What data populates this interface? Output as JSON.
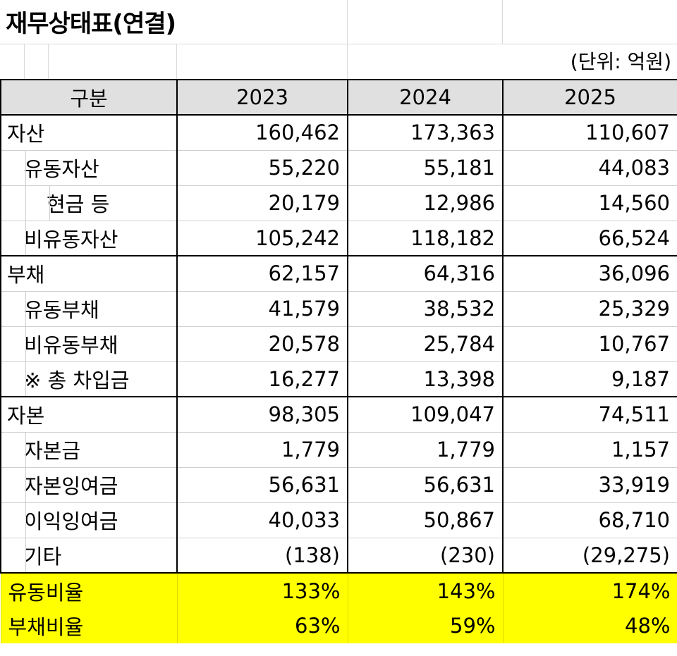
{
  "title": "재무상태표(연결)",
  "unit": "(단위: 억원)",
  "header": {
    "label": "구분",
    "years": [
      "2023",
      "2024",
      "2025"
    ]
  },
  "rows": [
    {
      "label": "자산",
      "level": 0,
      "values": [
        "160,462",
        "173,363",
        "110,607"
      ]
    },
    {
      "label": "유동자산",
      "level": 1,
      "values": [
        "55,220",
        "55,181",
        "44,083"
      ]
    },
    {
      "label": "현금 등",
      "level": 2,
      "values": [
        "20,179",
        "12,986",
        "14,560"
      ]
    },
    {
      "label": "비유동자산",
      "level": 1,
      "values": [
        "105,242",
        "118,182",
        "66,524"
      ]
    },
    {
      "label": "부채",
      "level": 0,
      "values": [
        "62,157",
        "64,316",
        "36,096"
      ]
    },
    {
      "label": "유동부채",
      "level": 1,
      "values": [
        "41,579",
        "38,532",
        "25,329"
      ]
    },
    {
      "label": "비유동부채",
      "level": 1,
      "values": [
        "20,578",
        "25,784",
        "10,767"
      ]
    },
    {
      "label": "※ 총 차입금",
      "level": 1,
      "values": [
        "16,277",
        "13,398",
        "9,187"
      ]
    },
    {
      "label": "자본",
      "level": 0,
      "values": [
        "98,305",
        "109,047",
        "74,511"
      ]
    },
    {
      "label": "자본금",
      "level": 1,
      "values": [
        "1,779",
        "1,779",
        "1,157"
      ]
    },
    {
      "label": "자본잉여금",
      "level": 1,
      "values": [
        "56,631",
        "56,631",
        "33,919"
      ]
    },
    {
      "label": "이익잉여금",
      "level": 1,
      "values": [
        "40,033",
        "50,867",
        "68,710"
      ]
    },
    {
      "label": "기타",
      "level": 1,
      "values": [
        "(138)",
        "(230)",
        "(29,275)"
      ]
    }
  ],
  "ratios": [
    {
      "label": "유동비율",
      "values": [
        "133%",
        "143%",
        "174%"
      ]
    },
    {
      "label": "부채비율",
      "values": [
        "63%",
        "59%",
        "48%"
      ]
    }
  ],
  "colors": {
    "header_bg": "#e0e0e0",
    "ratio_bg": "#ffff00"
  }
}
